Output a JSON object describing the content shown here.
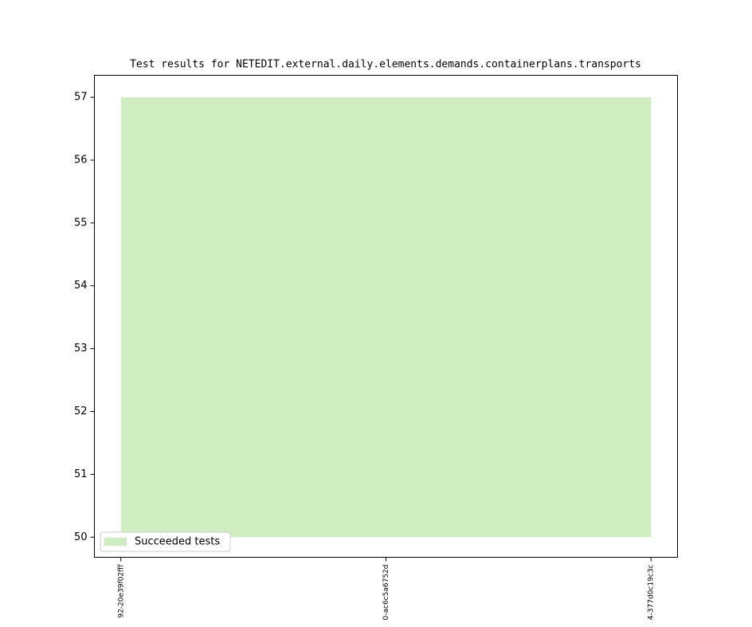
{
  "chart_data": {
    "type": "area",
    "title": "Test results for NETEDIT.external.daily.elements.demands.containerplans.transports",
    "categories": [
      "92-20e39f02fff",
      "0-ac6c5a6752d",
      "4-377d0c19c3c"
    ],
    "series": [
      {
        "name": "Succeeded tests",
        "color": "#cfedc0",
        "values": [
          57,
          57,
          57
        ]
      }
    ],
    "baseline": 50,
    "ylim": [
      49.68,
      57.35
    ],
    "yticks": [
      50,
      51,
      52,
      53,
      54,
      55,
      56,
      57
    ],
    "legend": "lower left",
    "grid": false
  }
}
